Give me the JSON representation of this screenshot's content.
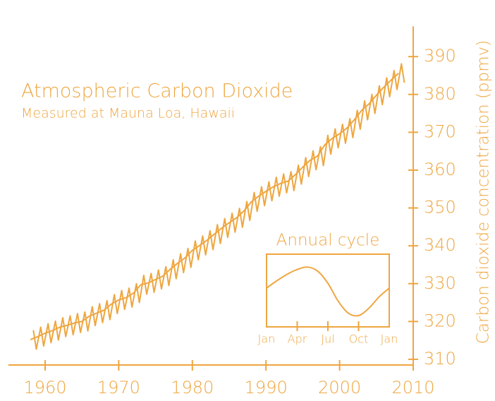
{
  "chart_data": [
    {
      "type": "line",
      "title": "Atmospheric Carbon Dioxide",
      "subtitle": "Measured at Mauna Loa, Hawaii",
      "y_label": "Carbon dioxide concentration (ppmv)",
      "color": "#eea640",
      "xlim": [
        1955,
        2010
      ],
      "xticks": [
        1960,
        1970,
        1980,
        1990,
        2000,
        2010
      ],
      "ylim": [
        308.5,
        398
      ],
      "yticks": [
        310,
        320,
        330,
        340,
        350,
        360,
        370,
        380,
        390
      ],
      "series": [
        {
          "color": "#eea640",
          "x": [
            1958,
            1959,
            1960,
            1961,
            1962,
            1963,
            1964,
            1965,
            1966,
            1967,
            1968,
            1969,
            1970,
            1971,
            1972,
            1973,
            1974,
            1975,
            1976,
            1977,
            1978,
            1979,
            1980,
            1981,
            1982,
            1983,
            1984,
            1985,
            1986,
            1987,
            1988,
            1989,
            1990,
            1991,
            1992,
            1993,
            1994,
            1995,
            1996,
            1997,
            1998,
            1999,
            2000,
            2001,
            2002,
            2003,
            2004,
            2005,
            2006,
            2007,
            2008
          ],
          "values": [
            315.2,
            316.0,
            316.9,
            317.6,
            318.5,
            319.0,
            319.6,
            320.0,
            321.4,
            322.2,
            323.0,
            324.6,
            325.7,
            326.3,
            327.5,
            329.7,
            330.2,
            331.1,
            332.0,
            333.8,
            335.4,
            336.8,
            338.8,
            340.1,
            341.5,
            343.1,
            344.7,
            346.1,
            347.4,
            349.2,
            351.6,
            353.1,
            354.4,
            355.6,
            356.5,
            357.1,
            358.8,
            360.8,
            362.6,
            363.7,
            366.7,
            368.4,
            369.6,
            371.1,
            373.3,
            375.8,
            377.5,
            379.8,
            381.9,
            383.8,
            385.6
          ]
        },
        {
          "color": "#eea640",
          "x": [
            1958.4,
            1958.8,
            1959.4,
            1959.8,
            1960.4,
            1960.8,
            1961.4,
            1961.8,
            1962.4,
            1962.8,
            1963.4,
            1963.8,
            1964.4,
            1964.8,
            1965.4,
            1965.8,
            1966.4,
            1966.8,
            1967.4,
            1967.8,
            1968.4,
            1968.8,
            1969.4,
            1969.8,
            1970.4,
            1970.8,
            1971.4,
            1971.8,
            1972.4,
            1972.8,
            1973.4,
            1973.8,
            1974.4,
            1974.8,
            1975.4,
            1975.8,
            1976.4,
            1976.8,
            1977.4,
            1977.8,
            1978.4,
            1978.8,
            1979.4,
            1979.8,
            1980.4,
            1980.8,
            1981.4,
            1981.8,
            1982.4,
            1982.8,
            1983.4,
            1983.8,
            1984.4,
            1984.8,
            1985.4,
            1985.8,
            1986.4,
            1986.8,
            1987.4,
            1987.8,
            1988.4,
            1988.8,
            1989.4,
            1989.8,
            1990.4,
            1990.8,
            1991.4,
            1991.8,
            1992.4,
            1992.8,
            1993.4,
            1993.8,
            1994.4,
            1994.8,
            1995.4,
            1995.8,
            1996.4,
            1996.8,
            1997.4,
            1997.8,
            1998.4,
            1998.8,
            1999.4,
            1999.8,
            2000.4,
            2000.8,
            2001.4,
            2001.8,
            2002.4,
            2002.8,
            2003.4,
            2003.8,
            2004.4,
            2004.8,
            2005.4,
            2005.8,
            2006.4,
            2006.8,
            2007.4,
            2007.8,
            2008.4,
            2008.8
          ],
          "values": [
            317.7,
            312.7,
            318.5,
            313.5,
            319.4,
            314.4,
            320.1,
            315.1,
            321.0,
            316.0,
            321.5,
            316.5,
            322.1,
            317.1,
            322.5,
            317.5,
            323.9,
            318.9,
            324.7,
            319.7,
            325.5,
            320.5,
            327.1,
            322.1,
            328.2,
            323.2,
            328.8,
            323.8,
            330.0,
            325.0,
            332.2,
            327.2,
            332.7,
            327.7,
            333.6,
            328.6,
            334.5,
            329.5,
            336.3,
            331.3,
            337.9,
            332.9,
            339.3,
            334.3,
            341.3,
            336.3,
            342.6,
            337.6,
            344.0,
            339.0,
            345.6,
            340.6,
            347.2,
            342.2,
            348.6,
            343.6,
            349.9,
            344.9,
            351.7,
            346.7,
            354.1,
            349.1,
            355.6,
            350.6,
            356.9,
            351.9,
            358.1,
            353.1,
            359.0,
            354.0,
            359.6,
            354.6,
            361.3,
            356.3,
            363.3,
            358.3,
            365.1,
            360.1,
            366.2,
            361.2,
            369.2,
            364.2,
            370.9,
            365.9,
            372.1,
            367.1,
            373.6,
            368.6,
            375.8,
            370.8,
            378.3,
            373.3,
            380.0,
            375.0,
            382.3,
            377.3,
            384.4,
            379.4,
            386.3,
            381.3,
            388.1,
            383.1
          ]
        }
      ]
    },
    {
      "type": "line",
      "title": "Annual cycle",
      "color": "#eea640",
      "x": [
        0,
        1,
        2,
        3,
        4,
        5,
        6,
        7,
        8,
        9,
        10,
        11,
        12
      ],
      "xlim": [
        0,
        12
      ],
      "xticks": [
        {
          "value": 0,
          "label": "Jan"
        },
        {
          "value": 3,
          "label": "Apr"
        },
        {
          "value": 6,
          "label": "Jul"
        },
        {
          "value": 9,
          "label": "Oct"
        },
        {
          "value": 12,
          "label": "Jan"
        }
      ],
      "ylim": [
        -4.8,
        4.2
      ],
      "values": [
        0,
        0.9,
        1.7,
        2.3,
        2.6,
        2.1,
        0.6,
        -1.6,
        -3.1,
        -3.4,
        -2.5,
        -1.1,
        0
      ]
    }
  ]
}
